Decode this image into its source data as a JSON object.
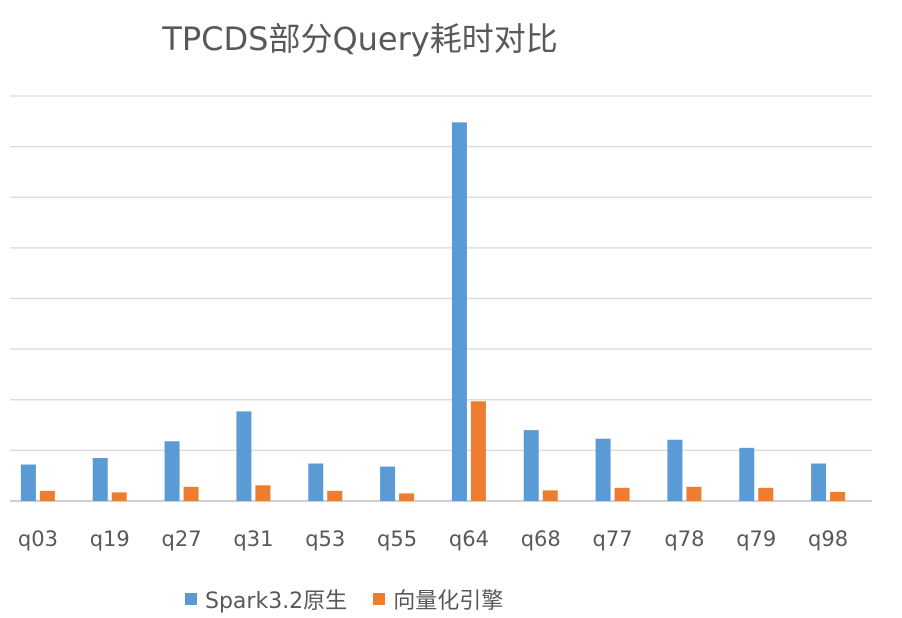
{
  "chart_data": {
    "type": "bar",
    "title": "TPCDS部分Query耗时对比",
    "categories": [
      "q03",
      "q19",
      "q27",
      "q31",
      "q53",
      "q55",
      "q64",
      "q68",
      "q77",
      "q78",
      "q79",
      "q98"
    ],
    "series": [
      {
        "name": "Spark3.2原生",
        "color": "#5B9BD5",
        "values": [
          0.72,
          0.85,
          1.18,
          1.77,
          0.74,
          0.68,
          7.48,
          1.4,
          1.23,
          1.21,
          1.05,
          0.74
        ]
      },
      {
        "name": "向量化引擎",
        "color": "#ED7D31",
        "values": [
          0.2,
          0.17,
          0.28,
          0.31,
          0.2,
          0.15,
          1.97,
          0.21,
          0.26,
          0.28,
          0.26,
          0.18
        ]
      }
    ],
    "ylim": [
      0,
      8
    ],
    "y_gridlines": 8,
    "show_y_tick_labels": false,
    "grid": true,
    "legend_position": "bottom"
  }
}
